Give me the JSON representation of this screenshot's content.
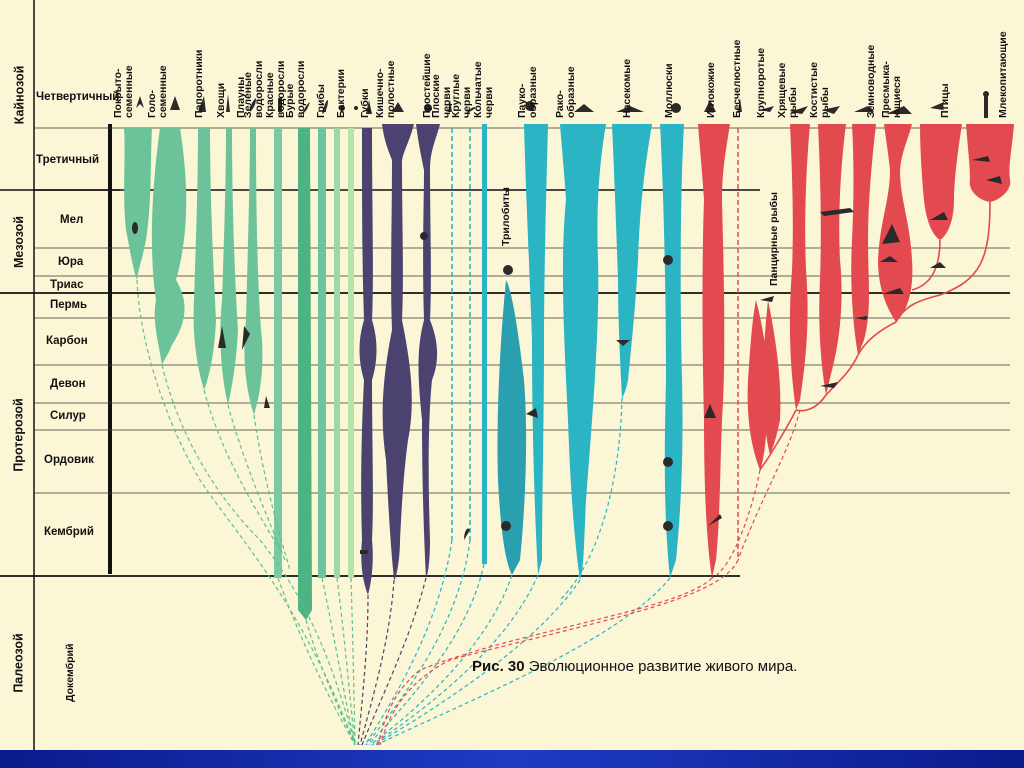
{
  "eras": [
    {
      "label": "Кайнозой"
    },
    {
      "label": "Мезозой"
    },
    {
      "label": "Протерозой"
    },
    {
      "label": "Палеозой"
    }
  ],
  "periods": [
    {
      "label": "Четвертичный"
    },
    {
      "label": "Третичный"
    },
    {
      "label": "Мел"
    },
    {
      "label": "Юра"
    },
    {
      "label": "Триас"
    },
    {
      "label": "Пермь"
    },
    {
      "label": "Карбон"
    },
    {
      "label": "Девон"
    },
    {
      "label": "Силур"
    },
    {
      "label": "Ордовик"
    },
    {
      "label": "Кембрий"
    },
    {
      "label": "Докембрий"
    }
  ],
  "groups": [
    {
      "line1": "Покрыто-",
      "line2": "семенные"
    },
    {
      "line1": "Голо-",
      "line2": "семенные"
    },
    {
      "line1": "Папоротники",
      "line2": ""
    },
    {
      "line1": "Хвощи",
      "line2": ""
    },
    {
      "line1": "Плауны",
      "line2": ""
    },
    {
      "line1": "Зеленые",
      "line2": "водоросли"
    },
    {
      "line1": "Красные",
      "line2": "водоросли"
    },
    {
      "line1": "Бурые",
      "line2": "водоросли"
    },
    {
      "line1": "Грибы",
      "line2": ""
    },
    {
      "line1": "Бактерии",
      "line2": ""
    },
    {
      "line1": "Губки",
      "line2": ""
    },
    {
      "line1": "Кишечно-",
      "line2": "полостные"
    },
    {
      "line1": "Простейшие",
      "line2": ""
    },
    {
      "line1": "Плоские",
      "line2": "черви"
    },
    {
      "line1": "Круглые",
      "line2": "черви"
    },
    {
      "line1": "Кольчатые",
      "line2": "черви"
    },
    {
      "line1": "Пауко-",
      "line2": "образные"
    },
    {
      "line1": "Рако-",
      "line2": "образные"
    },
    {
      "line1": "Насекомые",
      "line2": ""
    },
    {
      "line1": "Моллюски",
      "line2": ""
    },
    {
      "line1": "Иглокожие",
      "line2": ""
    },
    {
      "line1": "Бесчелюстные",
      "line2": ""
    },
    {
      "line1": "Крупноротые",
      "line2": ""
    },
    {
      "line1": "Хрящевые",
      "line2": "рыбы"
    },
    {
      "line1": "Костистые",
      "line2": "рыбы"
    },
    {
      "line1": "Земноводные",
      "line2": ""
    },
    {
      "line1": "Пресмыка-",
      "line2": "ющиеся"
    },
    {
      "line1": "Птицы",
      "line2": ""
    },
    {
      "line1": "Млекопитающие",
      "line2": ""
    }
  ],
  "inline_labels": {
    "trilobites": "Трилобиты",
    "armored_fish": "Панцирные рыбы"
  },
  "caption": {
    "number": "Рис. 30",
    "text": "Эволюционное развитие живого мира."
  },
  "colors": {
    "background": "#fbf6d6",
    "plants": "#5fbf8e",
    "plants_light": "#9cd89a",
    "invertebrates_dark": "#4a3f6e",
    "arthropods": "#2bb4c4",
    "vertebrates": "#e24a4f",
    "bottom_bar": "#1e3cc4"
  }
}
